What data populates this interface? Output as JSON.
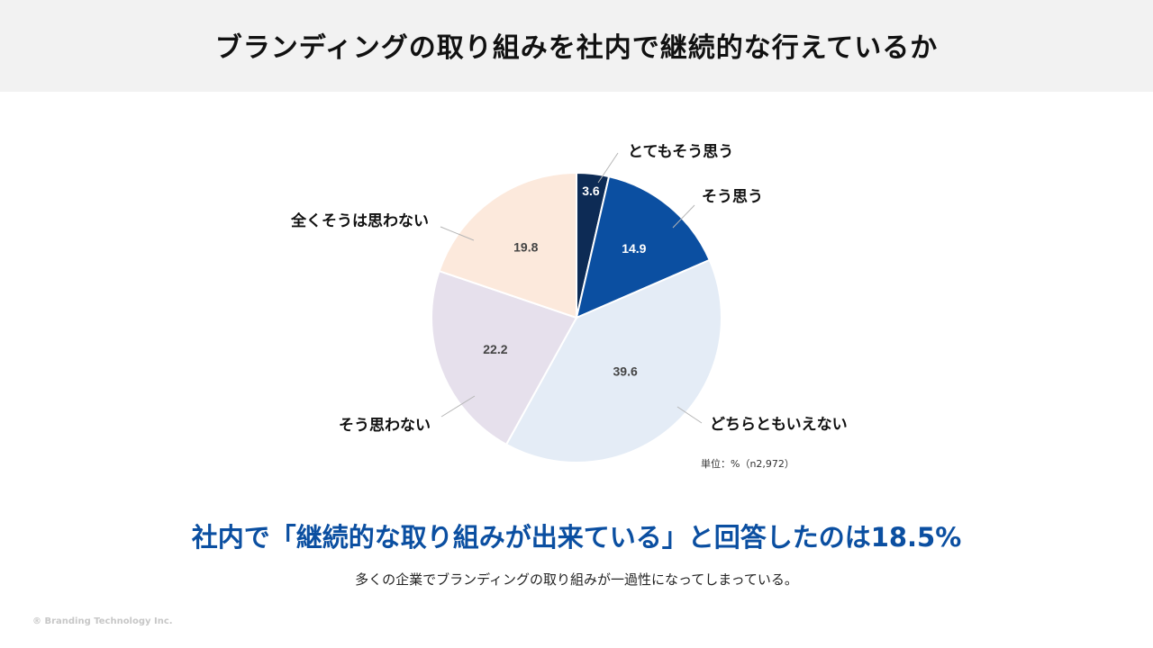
{
  "title": "ブランディングの取り組みを社内で継続的な行えているか",
  "unit_note": "単位：%（n2,972）",
  "headline": "社内で「継続的な取り組みが出来ている」と回答したのは18.5%",
  "subtext": "多くの企業でブランディングの取り組みが一過性になってしまっている。",
  "copyright": "® Branding Technology Inc.",
  "chart_data": {
    "type": "pie",
    "title": "",
    "unit": "%",
    "slices": [
      {
        "label": "とてもそう思う",
        "value": 3.6,
        "color": "#0d2b55",
        "value_color": "#ffffff"
      },
      {
        "label": "そう思う",
        "value": 14.9,
        "color": "#0b4fa1",
        "value_color": "#ffffff"
      },
      {
        "label": "どちらともいえない",
        "value": 39.6,
        "color": "#e4ecf6",
        "value_color": "#444444"
      },
      {
        "label": "そう思わない",
        "value": 22.2,
        "color": "#e6e0ec",
        "value_color": "#444444"
      },
      {
        "label": "全くそうは思わない",
        "value": 19.8,
        "color": "#fce9dc",
        "value_color": "#444444"
      }
    ]
  }
}
